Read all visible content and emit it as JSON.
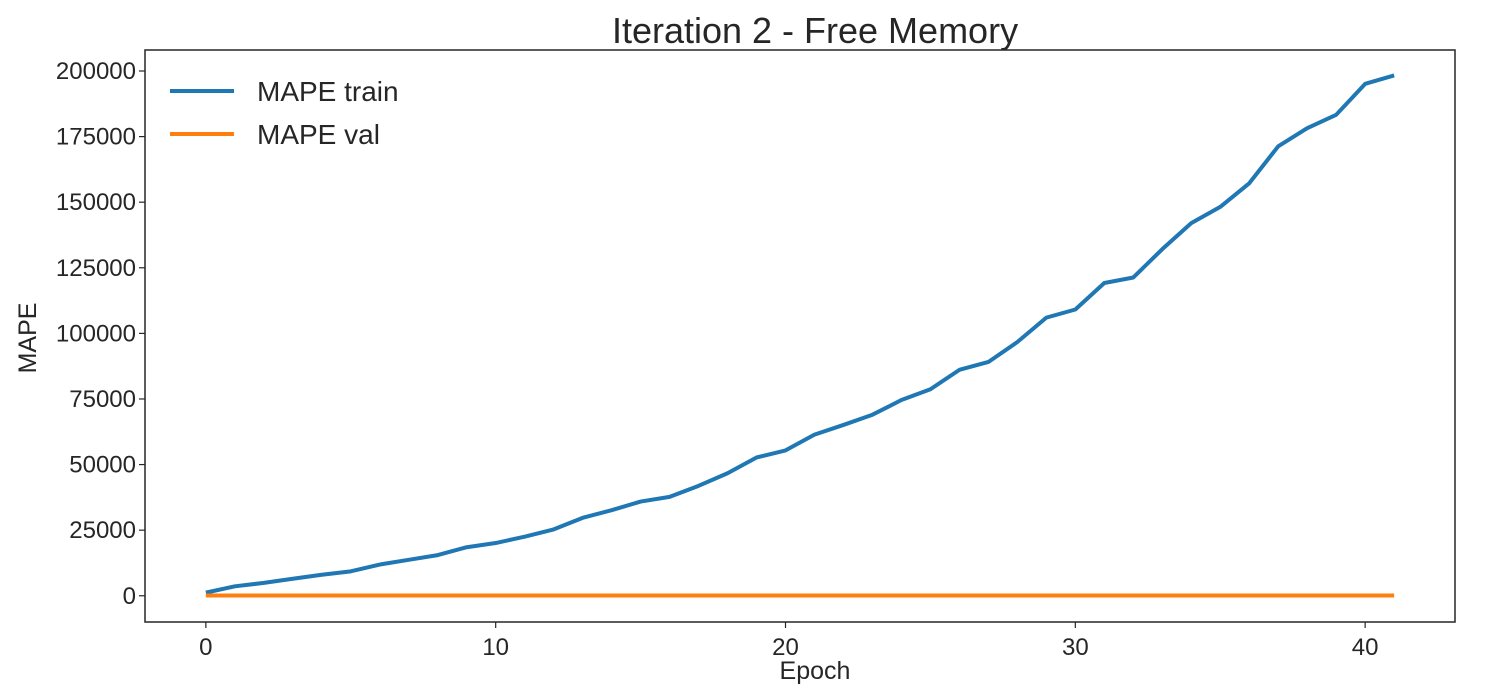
{
  "chart_data": {
    "type": "line",
    "title": "Iteration 2 - Free Memory",
    "xlabel": "Epoch",
    "ylabel": "MAPE",
    "xlim": [
      -2.1,
      43.1
    ],
    "ylim": [
      -10000,
      208000
    ],
    "xticks": [
      0,
      10,
      20,
      30,
      40
    ],
    "yticks": [
      0,
      25000,
      50000,
      75000,
      100000,
      125000,
      150000,
      175000,
      200000
    ],
    "grid": false,
    "legend_position": "top-left",
    "x": [
      0,
      1,
      2,
      3,
      4,
      5,
      6,
      7,
      8,
      9,
      10,
      11,
      12,
      13,
      14,
      15,
      16,
      17,
      18,
      19,
      20,
      21,
      22,
      23,
      24,
      25,
      26,
      27,
      28,
      29,
      30,
      31,
      32,
      33,
      34,
      35,
      36,
      37,
      38,
      39,
      40,
      41
    ],
    "series": [
      {
        "name": "MAPE train",
        "color": "#1f77b4",
        "values": [
          1200,
          3600,
          4900,
          6500,
          8000,
          9300,
          11900,
          13700,
          15500,
          18500,
          20100,
          22500,
          25300,
          29700,
          32600,
          35900,
          37700,
          41900,
          46700,
          52700,
          55400,
          61400,
          65100,
          69000,
          74600,
          78700,
          86100,
          89100,
          96700,
          106000,
          109100,
          119200,
          121300,
          132100,
          142000,
          148200,
          157200,
          171300,
          178200,
          183300,
          195100,
          198300
        ]
      },
      {
        "name": "MAPE val",
        "color": "#ff7f0e",
        "values": [
          100,
          100,
          100,
          100,
          100,
          100,
          100,
          100,
          100,
          100,
          100,
          100,
          100,
          100,
          100,
          100,
          100,
          100,
          100,
          100,
          100,
          100,
          100,
          100,
          100,
          100,
          100,
          100,
          100,
          100,
          100,
          100,
          100,
          100,
          100,
          100,
          100,
          100,
          100,
          100,
          100,
          100
        ]
      }
    ]
  }
}
